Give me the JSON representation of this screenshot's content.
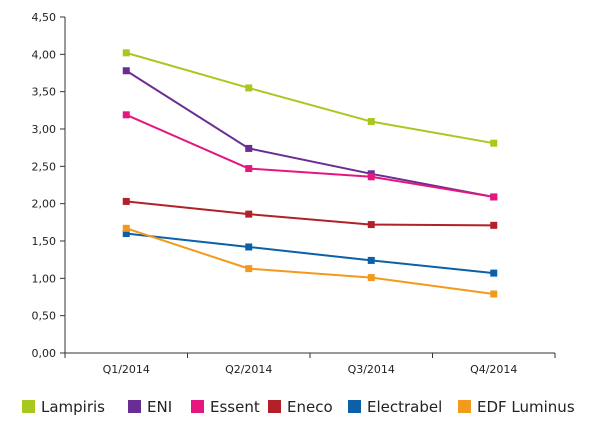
{
  "chart_data": {
    "type": "line",
    "categories": [
      "Q1/2014",
      "Q2/2014",
      "Q3/2014",
      "Q4/2014"
    ],
    "ylim": [
      0,
      4.5
    ],
    "yticks": [
      "0,00",
      "0,50",
      "1,00",
      "1,50",
      "2,00",
      "2,50",
      "3,00",
      "3,50",
      "4,00",
      "4,50"
    ],
    "grid": false,
    "legend_position": "bottom",
    "series": [
      {
        "name": "Lampiris",
        "color": "#a8c81e",
        "values": [
          4.02,
          3.55,
          3.1,
          2.81
        ]
      },
      {
        "name": "ENI",
        "color": "#6a2d91",
        "values": [
          3.78,
          2.74,
          2.4,
          2.09
        ]
      },
      {
        "name": "Essent",
        "color": "#e5177f",
        "values": [
          3.19,
          2.47,
          2.36,
          2.09
        ]
      },
      {
        "name": "Eneco",
        "color": "#b3202a",
        "values": [
          2.03,
          1.86,
          1.72,
          1.71
        ]
      },
      {
        "name": "Electrabel",
        "color": "#0b60a8",
        "values": [
          1.6,
          1.42,
          1.24,
          1.07
        ]
      },
      {
        "name": "EDF Luminus",
        "color": "#f39a1c",
        "values": [
          1.67,
          1.13,
          1.01,
          0.79
        ]
      }
    ]
  }
}
